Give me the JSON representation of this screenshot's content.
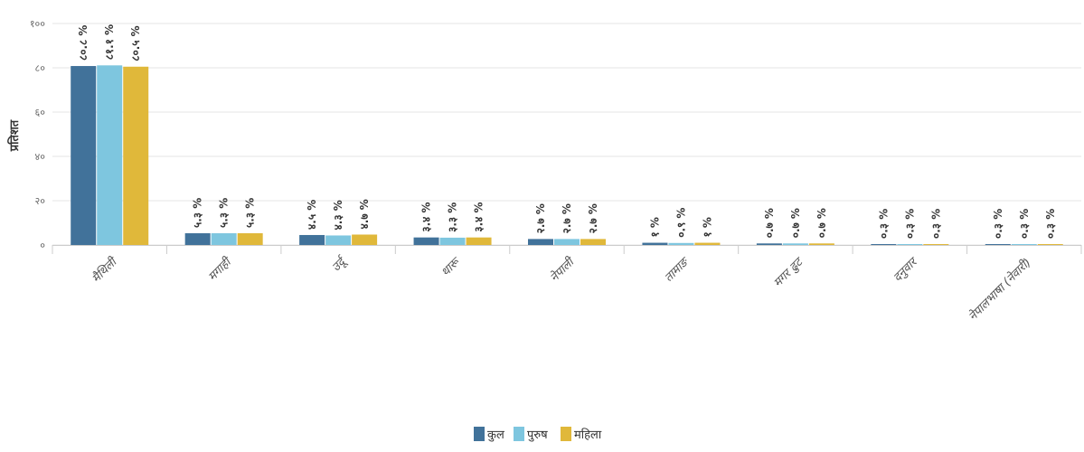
{
  "chart_data": {
    "type": "bar",
    "ylabel": "प्रतिशत",
    "ylim": [
      0,
      100
    ],
    "yticks": [
      "०",
      "२०",
      "४०",
      "६०",
      "८०",
      "१००"
    ],
    "ytick_values": [
      0,
      20,
      40,
      60,
      80,
      100
    ],
    "grid": true,
    "legend_position": "bottom",
    "categories": [
      "मैथिली",
      "मगाही",
      "उर्दू",
      "थारू",
      "नेपाली",
      "तामाङ",
      "मगर ढुट",
      "दनुवार",
      "नेपालभाषा (नेवारी)"
    ],
    "series": [
      {
        "name": "कुल",
        "color": "#41729a",
        "values": [
          80.8,
          5.3,
          4.5,
          3.4,
          2.7,
          1.0,
          0.7,
          0.3,
          0.3
        ],
        "labels": [
          "८०.८ %",
          "५.३ %",
          "४.५ %",
          "३.४ %",
          "२.७ %",
          "१ %",
          "०.७ %",
          "०.३ %",
          "०.३ %"
        ]
      },
      {
        "name": "पुरुष",
        "color": "#7ec6df",
        "values": [
          81.1,
          5.3,
          4.3,
          3.3,
          2.7,
          0.9,
          0.7,
          0.3,
          0.3
        ],
        "labels": [
          "८१.१ %",
          "५.३ %",
          "४.३ %",
          "३.३ %",
          "२.७ %",
          "०.९ %",
          "०.७ %",
          "०.३ %",
          "०.३ %"
        ]
      },
      {
        "name": "महिला",
        "color": "#e0b83a",
        "values": [
          80.5,
          5.3,
          4.7,
          3.4,
          2.7,
          1.0,
          0.7,
          0.3,
          0.3
        ],
        "labels": [
          "८०.५ %",
          "५.३ %",
          "४.७ %",
          "३.४ %",
          "२.७ %",
          "१ %",
          "०.७ %",
          "०.३ %",
          "०.३ %"
        ]
      }
    ]
  }
}
